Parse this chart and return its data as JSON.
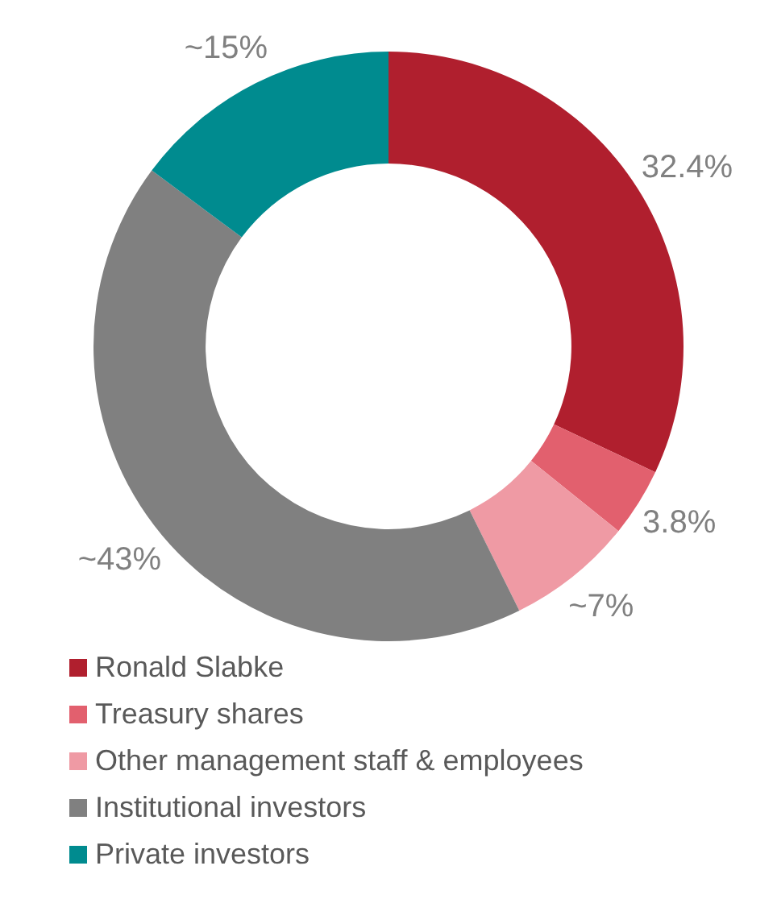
{
  "chart_data": {
    "type": "donut",
    "categories": [
      "Ronald Slabke",
      "Treasury shares",
      "Other management staff & employees",
      "Institutional investors",
      "Private investors"
    ],
    "values": [
      32.4,
      3.8,
      7,
      43,
      15
    ],
    "value_labels": [
      "32.4%",
      "3.8%",
      "~7%",
      "~43%",
      "~15%"
    ],
    "colors": [
      "#b01f2e",
      "#e2606e",
      "#ef9aa4",
      "#808080",
      "#008b8f"
    ],
    "legend": "bottom"
  }
}
